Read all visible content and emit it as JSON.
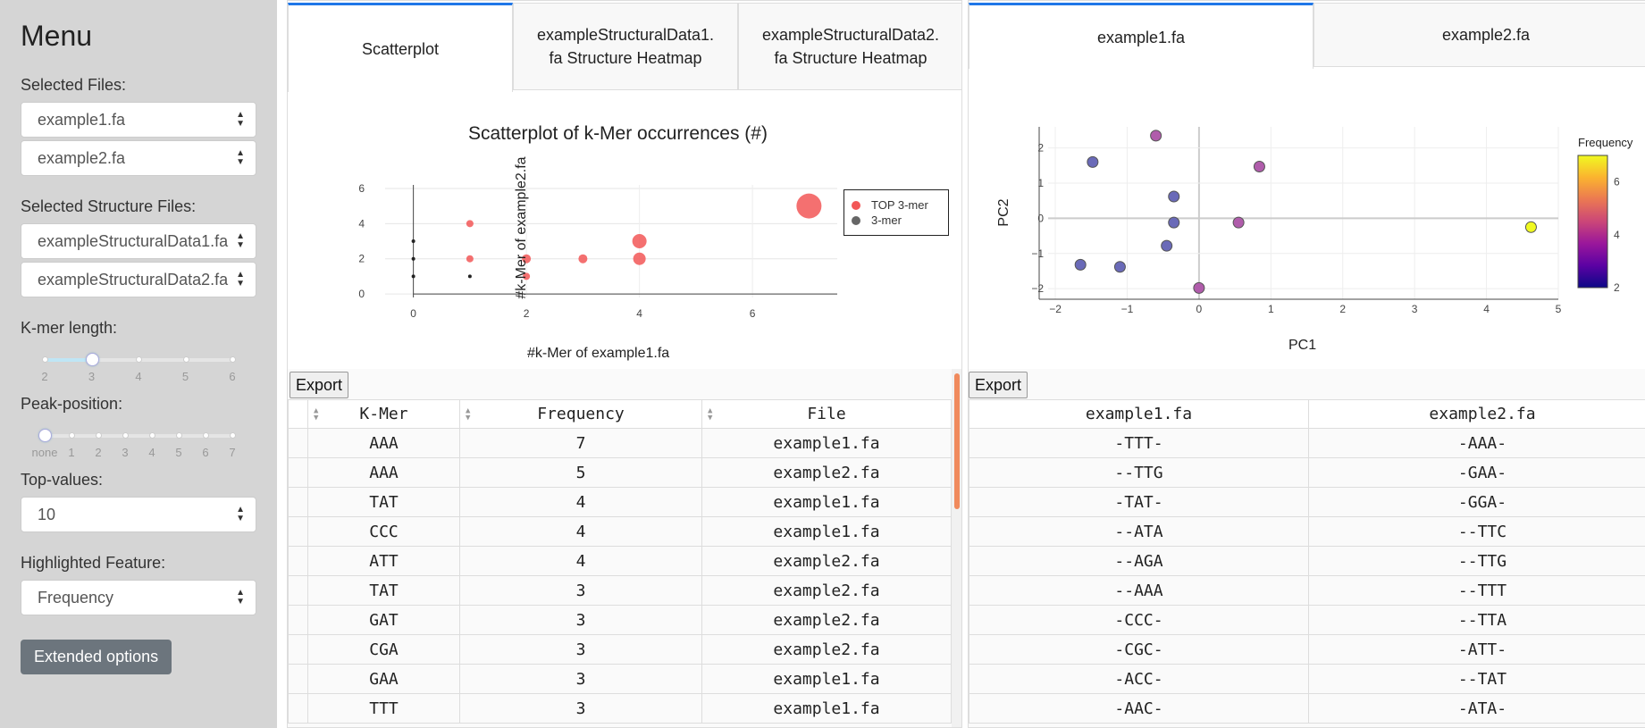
{
  "sidebar": {
    "title": "Menu",
    "selected_files_label": "Selected Files:",
    "files": [
      "example1.fa",
      "example2.fa"
    ],
    "structure_label": "Selected Structure Files:",
    "structure_files": [
      "exampleStructuralData1.fa",
      "exampleStructuralData2.fa"
    ],
    "kmer_label": "K-mer length:",
    "kmer_ticks": [
      "2",
      "3",
      "4",
      "5",
      "6"
    ],
    "kmer_value": 3,
    "peak_label": "Peak-position:",
    "peak_ticks": [
      "none",
      "1",
      "2",
      "3",
      "4",
      "5",
      "6",
      "7"
    ],
    "peak_value": "none",
    "top_label": "Top-values:",
    "top_value": "10",
    "feature_label": "Highlighted Feature:",
    "feature_value": "Frequency",
    "extended_label": "Extended options"
  },
  "left": {
    "tabs": [
      "Scatterplot",
      "exampleStructuralData1.\nfa Structure Heatmap",
      "exampleStructuralData2.\nfa Structure Heatmap"
    ],
    "export_label": "Export",
    "table": {
      "columns": [
        "K-Mer",
        "Frequency",
        "File"
      ],
      "rows": [
        [
          "AAA",
          "7",
          "example1.fa"
        ],
        [
          "AAA",
          "5",
          "example2.fa"
        ],
        [
          "TAT",
          "4",
          "example1.fa"
        ],
        [
          "CCC",
          "4",
          "example1.fa"
        ],
        [
          "ATT",
          "4",
          "example2.fa"
        ],
        [
          "TAT",
          "3",
          "example2.fa"
        ],
        [
          "GAT",
          "3",
          "example2.fa"
        ],
        [
          "CGA",
          "3",
          "example2.fa"
        ],
        [
          "GAA",
          "3",
          "example1.fa"
        ],
        [
          "TTT",
          "3",
          "example1.fa"
        ]
      ]
    }
  },
  "right": {
    "tabs": [
      "example1.fa",
      "example2.fa"
    ],
    "export_label": "Export",
    "table": {
      "columns": [
        "example1.fa",
        "example2.fa"
      ],
      "rows": [
        [
          "-TTT-",
          "-AAA-"
        ],
        [
          "--TTG",
          "-GAA-"
        ],
        [
          "-TAT-",
          "-GGA-"
        ],
        [
          "--ATA",
          "--TTC"
        ],
        [
          "--AGA",
          "--TTG"
        ],
        [
          "--AAA",
          "--TTT"
        ],
        [
          "-CCC-",
          "--TTA"
        ],
        [
          "-CGC-",
          "-ATT-"
        ],
        [
          "-ACC-",
          "--TAT"
        ],
        [
          "-AAC-",
          "-ATA-"
        ]
      ]
    }
  },
  "chart_data": [
    {
      "type": "scatter",
      "title": "Scatterplot of k-Mer occurrences (#)",
      "xlabel": "#k-Mer of example1.fa",
      "ylabel": "#k-Mer of example2.fa",
      "xlim": [
        -0.5,
        7.5
      ],
      "ylim": [
        -0.2,
        6.2
      ],
      "xticks": [
        "0",
        "2",
        "4",
        "6"
      ],
      "yticks": [
        "0",
        "2",
        "4",
        "6"
      ],
      "legend": "top-right",
      "series": [
        {
          "name": "TOP 3-mer",
          "color": "#f25757",
          "points": [
            [
              7,
              5
            ],
            [
              4,
              3
            ],
            [
              4,
              2
            ],
            [
              3,
              2
            ],
            [
              2,
              2
            ],
            [
              1,
              4
            ],
            [
              1,
              2
            ],
            [
              2,
              1
            ]
          ]
        },
        {
          "name": "3-mer",
          "color": "#222222",
          "points": [
            [
              1,
              1
            ],
            [
              0,
              1
            ],
            [
              0,
              3
            ],
            [
              0,
              2
            ]
          ]
        }
      ]
    },
    {
      "type": "scatter",
      "xlabel": "PC1",
      "ylabel": "PC2",
      "xlim": [
        -2.1,
        5.0
      ],
      "ylim": [
        -2.3,
        2.6
      ],
      "xticks": [
        "−2",
        "−1",
        "0",
        "1",
        "2",
        "3",
        "4",
        "5"
      ],
      "yticks": [
        "−2",
        "−1",
        "0",
        "1",
        "2"
      ],
      "colorbar": {
        "title": "Frequency",
        "ticks": [
          "2",
          "4",
          "6"
        ],
        "range": [
          2,
          7
        ]
      },
      "points": [
        {
          "x": -0.6,
          "y": 2.35,
          "f": 3
        },
        {
          "x": -1.48,
          "y": 1.6,
          "f": 2.5
        },
        {
          "x": 0.84,
          "y": 1.47,
          "f": 3
        },
        {
          "x": -0.35,
          "y": 0.62,
          "f": 2
        },
        {
          "x": -0.35,
          "y": -0.12,
          "f": 2
        },
        {
          "x": 0.55,
          "y": -0.12,
          "f": 3
        },
        {
          "x": -0.45,
          "y": -0.78,
          "f": 2
        },
        {
          "x": -1.65,
          "y": -1.32,
          "f": 2
        },
        {
          "x": -1.1,
          "y": -1.38,
          "f": 2
        },
        {
          "x": 0.0,
          "y": -1.98,
          "f": 3
        },
        {
          "x": 4.62,
          "y": -0.25,
          "f": 7
        }
      ]
    }
  ]
}
